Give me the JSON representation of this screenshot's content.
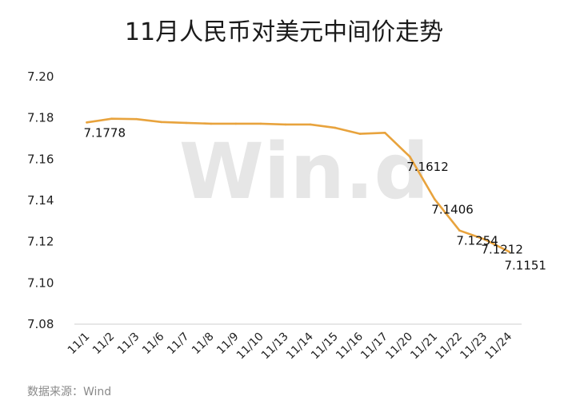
{
  "chart_data": {
    "type": "line",
    "title": "11月人民币对美元中间价走势",
    "xlabel": "",
    "ylabel": "",
    "ylim": [
      7.08,
      7.2
    ],
    "yticks": [
      "7.20",
      "7.18",
      "7.16",
      "7.14",
      "7.12",
      "7.10",
      "7.08"
    ],
    "grid": false,
    "categories": [
      "11/1",
      "11/2",
      "11/3",
      "11/6",
      "11/7",
      "11/8",
      "11/9",
      "11/10",
      "11/13",
      "11/14",
      "11/15",
      "11/16",
      "11/17",
      "11/20",
      "11/21",
      "11/22",
      "11/23",
      "11/24"
    ],
    "series": [
      {
        "values": [
          7.1778,
          7.1796,
          7.1794,
          7.178,
          7.1776,
          7.1772,
          7.1772,
          7.1772,
          7.1768,
          7.1768,
          7.1752,
          7.1723,
          7.1728,
          7.1612,
          7.1406,
          7.1254,
          7.1212,
          7.1151
        ],
        "color": "#e8a33d"
      }
    ],
    "data_labels": [
      {
        "category": "11/1",
        "text": "7.1778"
      },
      {
        "category": "11/20",
        "text": "7.1612"
      },
      {
        "category": "11/21",
        "text": "7.1406"
      },
      {
        "category": "11/22",
        "text": "7.1254"
      },
      {
        "category": "11/23",
        "text": "7.1212"
      },
      {
        "category": "11/24",
        "text": "7.1151"
      }
    ],
    "source": "数据来源：Wind",
    "watermark": "Win.d"
  }
}
